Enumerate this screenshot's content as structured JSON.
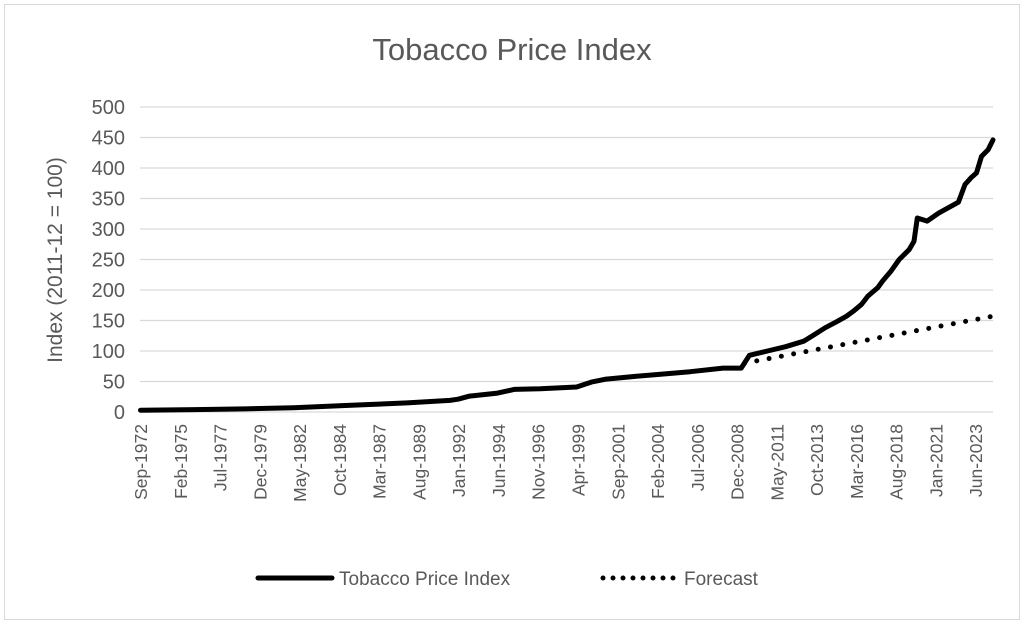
{
  "chart_data": {
    "type": "line",
    "title": "Tobacco Price Index",
    "xlabel": "",
    "ylabel": "Index (2011-12 = 100)",
    "ylim": [
      0,
      500
    ],
    "yticks": [
      0,
      50,
      100,
      150,
      200,
      250,
      300,
      350,
      400,
      450,
      500
    ],
    "xlim": [
      1972.67,
      2024.5
    ],
    "xtick_start": 1972.67,
    "xtick_step_years": 2.4167,
    "xtick_labels": [
      "Sep-1972",
      "Feb-1975",
      "Jul-1977",
      "Dec-1979",
      "May-1982",
      "Oct-1984",
      "Mar-1987",
      "Aug-1989",
      "Jan-1992",
      "Jun-1994",
      "Nov-1996",
      "Apr-1999",
      "Sep-2001",
      "Feb-2004",
      "Jul-2006",
      "Dec-2008",
      "May-2011",
      "Oct-2013",
      "Mar-2016",
      "Aug-2018",
      "Jan-2021",
      "Jun-2023"
    ],
    "grid": true,
    "legend_position": "bottom",
    "series": [
      {
        "name": "Tobacco Price Index",
        "style": "solid",
        "color": "#000000",
        "x": [
          1972.7,
          1976,
          1979,
          1982,
          1985.5,
          1988.9,
          1991.5,
          1992,
          1992.7,
          1994.4,
          1995.4,
          1997,
          1999.2,
          2000.1,
          2001,
          2002.6,
          2004.3,
          2006.1,
          2008.1,
          2009.2,
          2009.7,
          2010.8,
          2011.9,
          2013,
          2013.6,
          2014.3,
          2015,
          2015.6,
          2016,
          2016.5,
          2016.9,
          2017.5,
          2017.8,
          2018.3,
          2018.8,
          2019.4,
          2019.7,
          2019.9,
          2020.5,
          2021.2,
          2022.4,
          2022.8,
          2023.2,
          2023.5,
          2023.8,
          2024.2,
          2024.5
        ],
        "y": [
          3,
          4,
          5,
          7,
          11,
          15,
          19,
          21,
          26,
          31,
          37,
          38,
          41,
          49,
          54,
          58,
          62,
          66,
          72,
          72,
          93,
          100,
          107,
          116,
          126,
          138,
          148,
          157,
          165,
          176,
          190,
          204,
          215,
          231,
          250,
          266,
          280,
          318,
          313,
          326,
          344,
          373,
          385,
          392,
          419,
          430,
          446
        ]
      },
      {
        "name": "Forecast",
        "style": "dotted",
        "color": "#000000",
        "x": [
          2009.4,
          2024.5
        ],
        "y": [
          80,
          157
        ]
      }
    ]
  }
}
